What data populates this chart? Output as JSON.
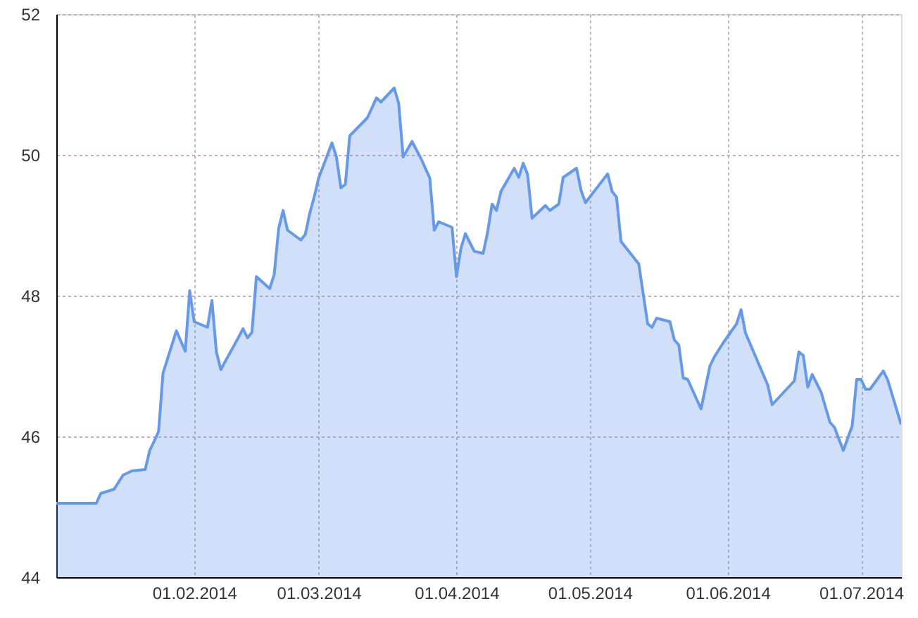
{
  "chart_data": {
    "type": "area",
    "x": [
      "2014-01-01",
      "2014-01-10",
      "2014-01-11",
      "2014-01-14",
      "2014-01-16",
      "2014-01-18",
      "2014-01-21",
      "2014-01-22",
      "2014-01-23",
      "2014-01-24",
      "2014-01-25",
      "2014-01-28",
      "2014-01-30",
      "2014-01-31",
      "2014-02-01",
      "2014-02-04",
      "2014-02-05",
      "2014-02-06",
      "2014-02-07",
      "2014-02-11",
      "2014-02-12",
      "2014-02-13",
      "2014-02-14",
      "2014-02-15",
      "2014-02-18",
      "2014-02-19",
      "2014-02-20",
      "2014-02-21",
      "2014-02-22",
      "2014-02-25",
      "2014-02-26",
      "2014-02-27",
      "2014-02-28",
      "2014-03-01",
      "2014-03-04",
      "2014-03-05",
      "2014-03-06",
      "2014-03-07",
      "2014-03-08",
      "2014-03-12",
      "2014-03-14",
      "2014-03-15",
      "2014-03-18",
      "2014-03-19",
      "2014-03-20",
      "2014-03-22",
      "2014-03-24",
      "2014-03-26",
      "2014-03-27",
      "2014-03-28",
      "2014-03-31",
      "2014-04-01",
      "2014-04-02",
      "2014-04-03",
      "2014-04-05",
      "2014-04-07",
      "2014-04-08",
      "2014-04-09",
      "2014-04-10",
      "2014-04-11",
      "2014-04-14",
      "2014-04-15",
      "2014-04-16",
      "2014-04-17",
      "2014-04-18",
      "2014-04-21",
      "2014-04-22",
      "2014-04-24",
      "2014-04-25",
      "2014-04-28",
      "2014-04-29",
      "2014-04-30",
      "2014-05-05",
      "2014-05-06",
      "2014-05-07",
      "2014-05-08",
      "2014-05-12",
      "2014-05-14",
      "2014-05-15",
      "2014-05-16",
      "2014-05-19",
      "2014-05-20",
      "2014-05-21",
      "2014-05-22",
      "2014-05-23",
      "2014-05-26",
      "2014-05-28",
      "2014-05-29",
      "2014-05-31",
      "2014-06-03",
      "2014-06-04",
      "2014-06-05",
      "2014-06-10",
      "2014-06-11",
      "2014-06-16",
      "2014-06-17",
      "2014-06-18",
      "2014-06-19",
      "2014-06-20",
      "2014-06-22",
      "2014-06-24",
      "2014-06-25",
      "2014-06-27",
      "2014-06-29",
      "2014-06-30",
      "2014-07-01",
      "2014-07-02",
      "2014-07-03",
      "2014-07-06",
      "2014-07-07",
      "2014-07-10"
    ],
    "series": [
      {
        "color": "#6699e8",
        "values": [
          45.05,
          45.05,
          45.19,
          45.25,
          45.45,
          45.51,
          45.53,
          45.8,
          45.93,
          46.07,
          46.9,
          47.5,
          47.21,
          48.07,
          47.63,
          47.55,
          47.93,
          47.2,
          46.95,
          47.41,
          47.53,
          47.4,
          47.48,
          48.27,
          48.1,
          48.3,
          48.95,
          49.21,
          48.93,
          48.79,
          48.87,
          49.17,
          49.4,
          49.67,
          50.17,
          49.97,
          49.53,
          49.58,
          50.27,
          50.53,
          50.81,
          50.75,
          50.95,
          50.73,
          49.97,
          50.19,
          49.95,
          49.67,
          48.93,
          49.05,
          48.97,
          48.27,
          48.67,
          48.88,
          48.63,
          48.6,
          48.9,
          49.3,
          49.21,
          49.48,
          49.81,
          49.68,
          49.88,
          49.72,
          49.1,
          49.28,
          49.21,
          49.3,
          49.68,
          49.81,
          49.5,
          49.32,
          49.73,
          49.48,
          49.4,
          48.77,
          48.45,
          47.6,
          47.55,
          47.68,
          47.63,
          47.37,
          47.3,
          46.83,
          46.81,
          46.39,
          47.0,
          47.13,
          47.33,
          47.6,
          47.8,
          47.47,
          46.73,
          46.45,
          46.79,
          47.2,
          47.15,
          46.7,
          46.88,
          46.63,
          46.2,
          46.13,
          45.8,
          46.15,
          46.81,
          46.81,
          46.67,
          46.67,
          46.93,
          46.8,
          46.17
        ]
      }
    ],
    "xlim": [
      "2014-01-01",
      "2014-07-10"
    ],
    "ylim": [
      44,
      52
    ],
    "xticks": [
      {
        "value": "2014-02-01",
        "label": "01.02.2014"
      },
      {
        "value": "2014-03-01",
        "label": "01.03.2014"
      },
      {
        "value": "2014-04-01",
        "label": "01.04.2014"
      },
      {
        "value": "2014-05-01",
        "label": "01.05.2014"
      },
      {
        "value": "2014-06-01",
        "label": "01.06.2014"
      },
      {
        "value": "2014-07-01",
        "label": "01.07.2014"
      }
    ],
    "yticks": [
      44,
      46,
      48,
      50,
      52
    ],
    "grid": true
  }
}
